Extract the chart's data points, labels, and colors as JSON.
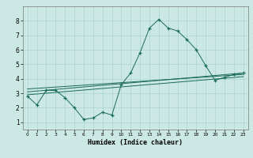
{
  "xlabel": "Humidex (Indice chaleur)",
  "ylabel": "",
  "bg_color": "#cce8e4",
  "line_color": "#1a6b5a",
  "grid_color": "#aad4ce",
  "xlim": [
    -0.5,
    23.5
  ],
  "ylim": [
    0.5,
    9.0
  ],
  "xticks": [
    0,
    1,
    2,
    3,
    4,
    5,
    6,
    7,
    8,
    9,
    10,
    11,
    12,
    13,
    14,
    15,
    16,
    17,
    18,
    19,
    20,
    21,
    22,
    23
  ],
  "yticks": [
    1,
    2,
    3,
    4,
    5,
    6,
    7,
    8
  ],
  "line1_x": [
    0,
    1,
    2,
    3,
    4,
    5,
    6,
    7,
    8,
    9,
    10,
    11,
    12,
    13,
    14,
    15,
    16,
    17,
    18,
    19,
    20,
    21,
    22,
    23
  ],
  "line1_y": [
    2.8,
    2.2,
    3.2,
    3.2,
    2.7,
    2.0,
    1.2,
    1.3,
    1.7,
    1.5,
    3.6,
    4.4,
    5.8,
    7.5,
    8.1,
    7.5,
    7.3,
    6.7,
    6.0,
    4.9,
    3.9,
    4.1,
    4.3,
    4.4
  ],
  "line2_x": [
    0,
    23
  ],
  "line2_y": [
    3.1,
    4.4
  ],
  "line3_x": [
    0,
    23
  ],
  "line3_y": [
    2.9,
    4.15
  ],
  "line4_x": [
    0,
    23
  ],
  "line4_y": [
    3.3,
    4.3
  ]
}
